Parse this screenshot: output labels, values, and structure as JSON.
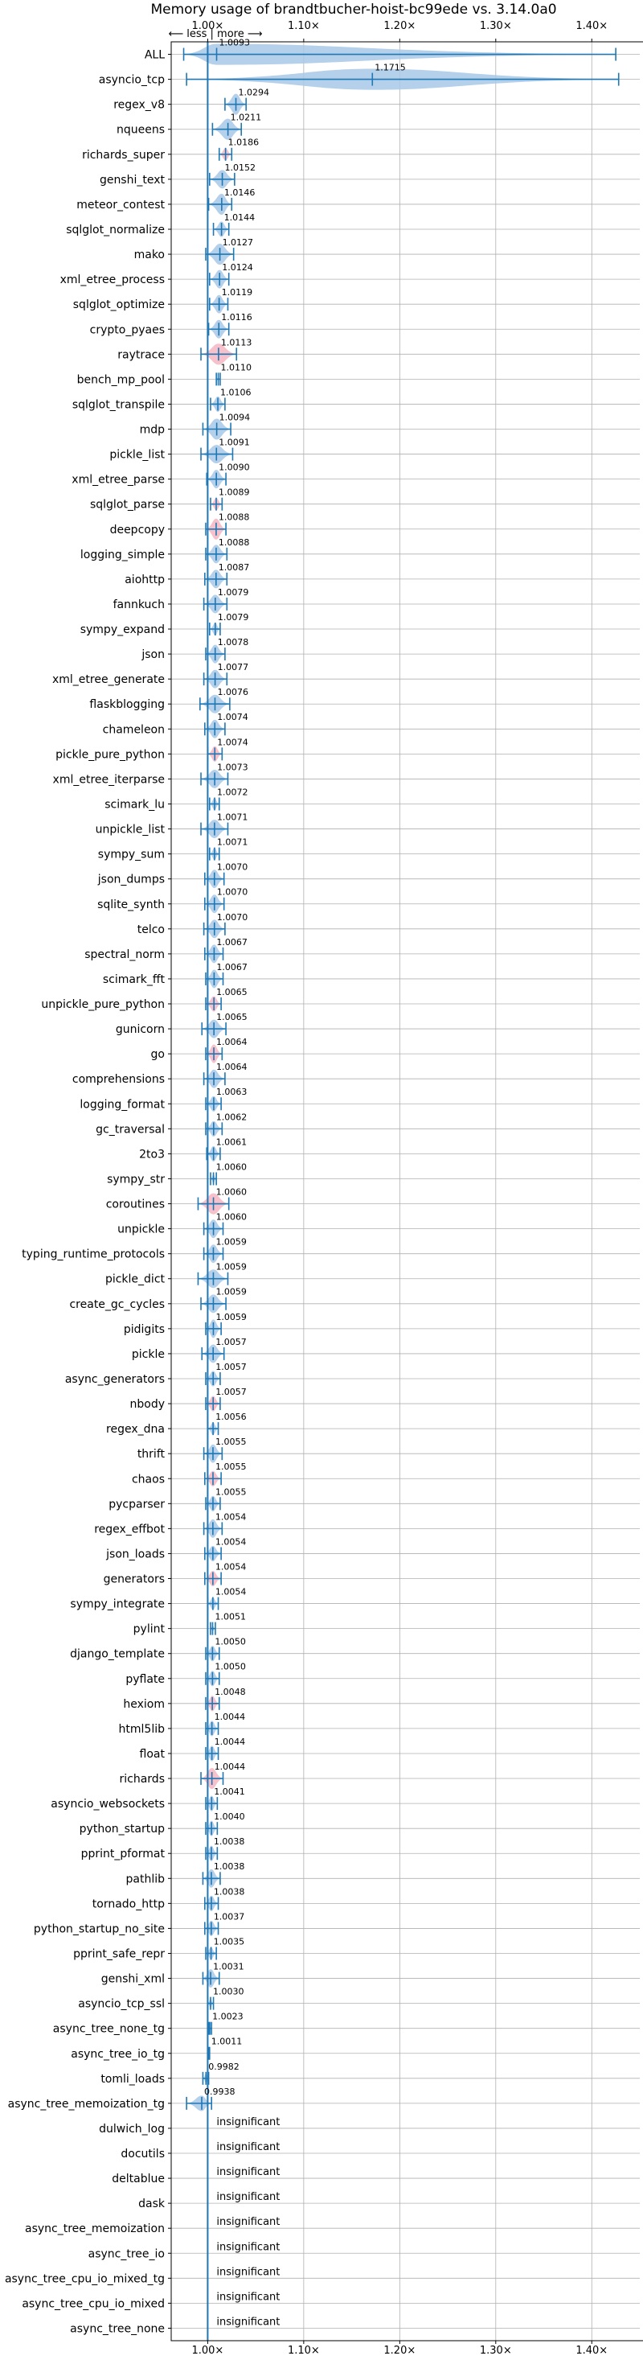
{
  "chart_data": {
    "type": "violin",
    "title": "Memory usage of brandtbucher-hoist-bc99ede vs. 3.14.0a0",
    "direction_label": "⟵ less | more ⟶",
    "x_ticks": [
      "1.00×",
      "1.10×",
      "1.20×",
      "1.30×",
      "1.40×"
    ],
    "x_tick_values": [
      1.0,
      1.1,
      1.2,
      1.3,
      1.4
    ],
    "xlim": [
      0.962,
      1.45
    ],
    "grid": true,
    "colors": {
      "bar": "#1f77b4",
      "violin_increase": "#f4b6c2",
      "violin_default": "#a8c8e6",
      "grid": "#b0b0b0",
      "text": "#000000"
    },
    "benchmarks": [
      {
        "name": "ALL",
        "value": 1.0093,
        "label": "1.0093",
        "min": 0.975,
        "max": 1.425,
        "width": 0.011,
        "color": "default"
      },
      {
        "name": "asyncio_tcp",
        "value": 1.1715,
        "label": "1.1715",
        "min": 0.978,
        "max": 1.428,
        "width": 0.058,
        "color": "default"
      },
      {
        "name": "regex_v8",
        "value": 1.0294,
        "label": "1.0294",
        "min": 1.018,
        "max": 1.04,
        "width": 0.008,
        "color": "default"
      },
      {
        "name": "nqueens",
        "value": 1.0211,
        "label": "1.0211",
        "min": 1.005,
        "max": 1.035,
        "width": 0.008,
        "color": "default"
      },
      {
        "name": "richards_super",
        "value": 1.0186,
        "label": "1.0186",
        "min": 1.012,
        "max": 1.025,
        "width": 0.004,
        "color": "increase"
      },
      {
        "name": "genshi_text",
        "value": 1.0152,
        "label": "1.0152",
        "min": 1.002,
        "max": 1.028,
        "width": 0.006,
        "color": "default"
      },
      {
        "name": "meteor_contest",
        "value": 1.0146,
        "label": "1.0146",
        "min": 1.001,
        "max": 1.025,
        "width": 0.007,
        "color": "default"
      },
      {
        "name": "sqlglot_normalize",
        "value": 1.0144,
        "label": "1.0144",
        "min": 1.006,
        "max": 1.022,
        "width": 0.005,
        "color": "default"
      },
      {
        "name": "mako",
        "value": 1.0127,
        "label": "1.0127",
        "min": 0.998,
        "max": 1.027,
        "width": 0.007,
        "color": "default"
      },
      {
        "name": "xml_etree_process",
        "value": 1.0124,
        "label": "1.0124",
        "min": 1.002,
        "max": 1.022,
        "width": 0.006,
        "color": "default"
      },
      {
        "name": "sqlglot_optimize",
        "value": 1.0119,
        "label": "1.0119",
        "min": 1.002,
        "max": 1.021,
        "width": 0.006,
        "color": "default"
      },
      {
        "name": "crypto_pyaes",
        "value": 1.0116,
        "label": "1.0116",
        "min": 1.001,
        "max": 1.022,
        "width": 0.006,
        "color": "default"
      },
      {
        "name": "raytrace",
        "value": 1.0113,
        "label": "1.0113",
        "min": 0.993,
        "max": 1.03,
        "width": 0.012,
        "color": "increase"
      },
      {
        "name": "bench_mp_pool",
        "value": 1.011,
        "label": "1.0110",
        "min": 1.009,
        "max": 1.013,
        "width": 0.001,
        "color": "default"
      },
      {
        "name": "sqlglot_transpile",
        "value": 1.0106,
        "label": "1.0106",
        "min": 1.003,
        "max": 1.018,
        "width": 0.005,
        "color": "default"
      },
      {
        "name": "mdp",
        "value": 1.0094,
        "label": "1.0094",
        "min": 0.995,
        "max": 1.024,
        "width": 0.007,
        "color": "default"
      },
      {
        "name": "pickle_list",
        "value": 1.0091,
        "label": "1.0091",
        "min": 0.993,
        "max": 1.026,
        "width": 0.006,
        "color": "default"
      },
      {
        "name": "xml_etree_parse",
        "value": 1.009,
        "label": "1.0090",
        "min": 0.999,
        "max": 1.019,
        "width": 0.006,
        "color": "default"
      },
      {
        "name": "sqlglot_parse",
        "value": 1.0089,
        "label": "1.0089",
        "min": 1.003,
        "max": 1.015,
        "width": 0.004,
        "color": "increase"
      },
      {
        "name": "deepcopy",
        "value": 1.0088,
        "label": "1.0088",
        "min": 0.998,
        "max": 1.019,
        "width": 0.008,
        "color": "increase"
      },
      {
        "name": "logging_simple",
        "value": 1.0088,
        "label": "1.0088",
        "min": 0.998,
        "max": 1.02,
        "width": 0.006,
        "color": "default"
      },
      {
        "name": "aiohttp",
        "value": 1.0087,
        "label": "1.0087",
        "min": 0.997,
        "max": 1.02,
        "width": 0.006,
        "color": "default"
      },
      {
        "name": "fannkuch",
        "value": 1.0079,
        "label": "1.0079",
        "min": 0.996,
        "max": 1.02,
        "width": 0.006,
        "color": "default"
      },
      {
        "name": "sympy_expand",
        "value": 1.0079,
        "label": "1.0079",
        "min": 1.002,
        "max": 1.013,
        "width": 0.004,
        "color": "default"
      },
      {
        "name": "json",
        "value": 1.0078,
        "label": "1.0078",
        "min": 0.998,
        "max": 1.018,
        "width": 0.006,
        "color": "default"
      },
      {
        "name": "xml_etree_generate",
        "value": 1.0077,
        "label": "1.0077",
        "min": 0.996,
        "max": 1.02,
        "width": 0.006,
        "color": "default"
      },
      {
        "name": "flaskblogging",
        "value": 1.0076,
        "label": "1.0076",
        "min": 0.992,
        "max": 1.023,
        "width": 0.006,
        "color": "default"
      },
      {
        "name": "chameleon",
        "value": 1.0074,
        "label": "1.0074",
        "min": 0.997,
        "max": 1.018,
        "width": 0.006,
        "color": "default"
      },
      {
        "name": "pickle_pure_python",
        "value": 1.0074,
        "label": "1.0074",
        "min": 1.0,
        "max": 1.015,
        "width": 0.005,
        "color": "increase"
      },
      {
        "name": "xml_etree_iterparse",
        "value": 1.0073,
        "label": "1.0073",
        "min": 0.993,
        "max": 1.021,
        "width": 0.006,
        "color": "default"
      },
      {
        "name": "scimark_lu",
        "value": 1.0072,
        "label": "1.0072",
        "min": 1.002,
        "max": 1.012,
        "width": 0.004,
        "color": "default"
      },
      {
        "name": "unpickle_list",
        "value": 1.0071,
        "label": "1.0071",
        "min": 0.993,
        "max": 1.021,
        "width": 0.006,
        "color": "default"
      },
      {
        "name": "sympy_sum",
        "value": 1.0071,
        "label": "1.0071",
        "min": 1.002,
        "max": 1.012,
        "width": 0.004,
        "color": "default"
      },
      {
        "name": "json_dumps",
        "value": 1.007,
        "label": "1.0070",
        "min": 0.997,
        "max": 1.017,
        "width": 0.006,
        "color": "default"
      },
      {
        "name": "sqlite_synth",
        "value": 1.007,
        "label": "1.0070",
        "min": 0.997,
        "max": 1.017,
        "width": 0.006,
        "color": "default"
      },
      {
        "name": "telco",
        "value": 1.007,
        "label": "1.0070",
        "min": 0.996,
        "max": 1.018,
        "width": 0.006,
        "color": "default"
      },
      {
        "name": "spectral_norm",
        "value": 1.0067,
        "label": "1.0067",
        "min": 0.997,
        "max": 1.016,
        "width": 0.006,
        "color": "default"
      },
      {
        "name": "scimark_fft",
        "value": 1.0067,
        "label": "1.0067",
        "min": 0.998,
        "max": 1.016,
        "width": 0.006,
        "color": "default"
      },
      {
        "name": "unpickle_pure_python",
        "value": 1.0065,
        "label": "1.0065",
        "min": 0.998,
        "max": 1.014,
        "width": 0.005,
        "color": "increase"
      },
      {
        "name": "gunicorn",
        "value": 1.0065,
        "label": "1.0065",
        "min": 0.994,
        "max": 1.019,
        "width": 0.006,
        "color": "default"
      },
      {
        "name": "go",
        "value": 1.0064,
        "label": "1.0064",
        "min": 0.998,
        "max": 1.015,
        "width": 0.006,
        "color": "increase"
      },
      {
        "name": "comprehensions",
        "value": 1.0064,
        "label": "1.0064",
        "min": 0.996,
        "max": 1.018,
        "width": 0.006,
        "color": "default"
      },
      {
        "name": "logging_format",
        "value": 1.0063,
        "label": "1.0063",
        "min": 0.998,
        "max": 1.014,
        "width": 0.005,
        "color": "default"
      },
      {
        "name": "gc_traversal",
        "value": 1.0062,
        "label": "1.0062",
        "min": 0.998,
        "max": 1.015,
        "width": 0.005,
        "color": "default"
      },
      {
        "name": "2to3",
        "value": 1.0061,
        "label": "1.0061",
        "min": 0.999,
        "max": 1.013,
        "width": 0.005,
        "color": "default"
      },
      {
        "name": "sympy_str",
        "value": 1.006,
        "label": "1.0060",
        "min": 1.003,
        "max": 1.009,
        "width": 0.003,
        "color": "default"
      },
      {
        "name": "coroutines",
        "value": 1.006,
        "label": "1.0060",
        "min": 0.99,
        "max": 1.022,
        "width": 0.013,
        "color": "increase"
      },
      {
        "name": "unpickle",
        "value": 1.006,
        "label": "1.0060",
        "min": 0.996,
        "max": 1.016,
        "width": 0.006,
        "color": "default"
      },
      {
        "name": "typing_runtime_protocols",
        "value": 1.0059,
        "label": "1.0059",
        "min": 0.996,
        "max": 1.016,
        "width": 0.006,
        "color": "default"
      },
      {
        "name": "pickle_dict",
        "value": 1.0059,
        "label": "1.0059",
        "min": 0.99,
        "max": 1.021,
        "width": 0.006,
        "color": "default"
      },
      {
        "name": "create_gc_cycles",
        "value": 1.0059,
        "label": "1.0059",
        "min": 0.993,
        "max": 1.019,
        "width": 0.006,
        "color": "default"
      },
      {
        "name": "pidigits",
        "value": 1.0059,
        "label": "1.0059",
        "min": 0.998,
        "max": 1.014,
        "width": 0.006,
        "color": "default"
      },
      {
        "name": "pickle",
        "value": 1.0057,
        "label": "1.0057",
        "min": 0.994,
        "max": 1.017,
        "width": 0.006,
        "color": "default"
      },
      {
        "name": "async_generators",
        "value": 1.0057,
        "label": "1.0057",
        "min": 0.998,
        "max": 1.013,
        "width": 0.005,
        "color": "default"
      },
      {
        "name": "nbody",
        "value": 1.0057,
        "label": "1.0057",
        "min": 0.998,
        "max": 1.013,
        "width": 0.005,
        "color": "increase"
      },
      {
        "name": "regex_dna",
        "value": 1.0056,
        "label": "1.0056",
        "min": 1.0,
        "max": 1.011,
        "width": 0.004,
        "color": "default"
      },
      {
        "name": "thrift",
        "value": 1.0055,
        "label": "1.0055",
        "min": 0.996,
        "max": 1.015,
        "width": 0.006,
        "color": "default"
      },
      {
        "name": "chaos",
        "value": 1.0055,
        "label": "1.0055",
        "min": 0.997,
        "max": 1.014,
        "width": 0.005,
        "color": "increase"
      },
      {
        "name": "pycparser",
        "value": 1.0055,
        "label": "1.0055",
        "min": 0.998,
        "max": 1.013,
        "width": 0.005,
        "color": "default"
      },
      {
        "name": "regex_effbot",
        "value": 1.0054,
        "label": "1.0054",
        "min": 0.996,
        "max": 1.015,
        "width": 0.006,
        "color": "default"
      },
      {
        "name": "json_loads",
        "value": 1.0054,
        "label": "1.0054",
        "min": 0.997,
        "max": 1.014,
        "width": 0.005,
        "color": "default"
      },
      {
        "name": "generators",
        "value": 1.0054,
        "label": "1.0054",
        "min": 0.997,
        "max": 1.014,
        "width": 0.005,
        "color": "increase"
      },
      {
        "name": "sympy_integrate",
        "value": 1.0054,
        "label": "1.0054",
        "min": 1.0,
        "max": 1.011,
        "width": 0.004,
        "color": "default"
      },
      {
        "name": "pylint",
        "value": 1.0051,
        "label": "1.0051",
        "min": 1.003,
        "max": 1.008,
        "width": 0.002,
        "color": "default"
      },
      {
        "name": "django_template",
        "value": 1.005,
        "label": "1.0050",
        "min": 0.998,
        "max": 1.012,
        "width": 0.005,
        "color": "default"
      },
      {
        "name": "pyflate",
        "value": 1.005,
        "label": "1.0050",
        "min": 0.998,
        "max": 1.012,
        "width": 0.005,
        "color": "default"
      },
      {
        "name": "hexiom",
        "value": 1.0048,
        "label": "1.0048",
        "min": 0.998,
        "max": 1.012,
        "width": 0.005,
        "color": "increase"
      },
      {
        "name": "html5lib",
        "value": 1.0044,
        "label": "1.0044",
        "min": 0.998,
        "max": 1.011,
        "width": 0.005,
        "color": "default"
      },
      {
        "name": "float",
        "value": 1.0044,
        "label": "1.0044",
        "min": 0.998,
        "max": 1.011,
        "width": 0.005,
        "color": "default"
      },
      {
        "name": "richards",
        "value": 1.0044,
        "label": "1.0044",
        "min": 0.993,
        "max": 1.016,
        "width": 0.008,
        "color": "increase"
      },
      {
        "name": "asyncio_websockets",
        "value": 1.0041,
        "label": "1.0041",
        "min": 0.998,
        "max": 1.01,
        "width": 0.005,
        "color": "default"
      },
      {
        "name": "python_startup",
        "value": 1.004,
        "label": "1.0040",
        "min": 0.998,
        "max": 1.01,
        "width": 0.005,
        "color": "default"
      },
      {
        "name": "pprint_pformat",
        "value": 1.0038,
        "label": "1.0038",
        "min": 0.998,
        "max": 1.01,
        "width": 0.005,
        "color": "default"
      },
      {
        "name": "pathlib",
        "value": 1.0038,
        "label": "1.0038",
        "min": 0.995,
        "max": 1.013,
        "width": 0.006,
        "color": "default"
      },
      {
        "name": "tornado_http",
        "value": 1.0038,
        "label": "1.0038",
        "min": 0.997,
        "max": 1.011,
        "width": 0.005,
        "color": "default"
      },
      {
        "name": "python_startup_no_site",
        "value": 1.0037,
        "label": "1.0037",
        "min": 0.997,
        "max": 1.011,
        "width": 0.005,
        "color": "default"
      },
      {
        "name": "pprint_safe_repr",
        "value": 1.0035,
        "label": "1.0035",
        "min": 0.998,
        "max": 1.009,
        "width": 0.004,
        "color": "default"
      },
      {
        "name": "genshi_xml",
        "value": 1.0031,
        "label": "1.0031",
        "min": 0.995,
        "max": 1.012,
        "width": 0.006,
        "color": "default"
      },
      {
        "name": "asyncio_tcp_ssl",
        "value": 1.003,
        "label": "1.0030",
        "min": 1.0,
        "max": 1.006,
        "width": 0.003,
        "color": "default"
      },
      {
        "name": "async_tree_none_tg",
        "value": 1.0023,
        "label": "1.0023",
        "min": 1.001,
        "max": 1.004,
        "width": 0.001,
        "color": "default"
      },
      {
        "name": "async_tree_io_tg",
        "value": 1.0011,
        "label": "1.0011",
        "min": 1.0,
        "max": 1.002,
        "width": 0.001,
        "color": "default"
      },
      {
        "name": "tomli_loads",
        "value": 0.9982,
        "label": "0.9982",
        "min": 0.995,
        "max": 1.001,
        "width": 0.003,
        "color": "default"
      },
      {
        "name": "async_tree_memoization_tg",
        "value": 0.9938,
        "label": "0.9938",
        "min": 0.978,
        "max": 1.004,
        "width": 0.005,
        "color": "default"
      },
      {
        "name": "dulwich_log",
        "value": null,
        "label": "insignificant"
      },
      {
        "name": "docutils",
        "value": null,
        "label": "insignificant"
      },
      {
        "name": "deltablue",
        "value": null,
        "label": "insignificant"
      },
      {
        "name": "dask",
        "value": null,
        "label": "insignificant"
      },
      {
        "name": "async_tree_memoization",
        "value": null,
        "label": "insignificant"
      },
      {
        "name": "async_tree_io",
        "value": null,
        "label": "insignificant"
      },
      {
        "name": "async_tree_cpu_io_mixed_tg",
        "value": null,
        "label": "insignificant"
      },
      {
        "name": "async_tree_cpu_io_mixed",
        "value": null,
        "label": "insignificant"
      },
      {
        "name": "async_tree_none",
        "value": null,
        "label": "insignificant"
      }
    ]
  }
}
